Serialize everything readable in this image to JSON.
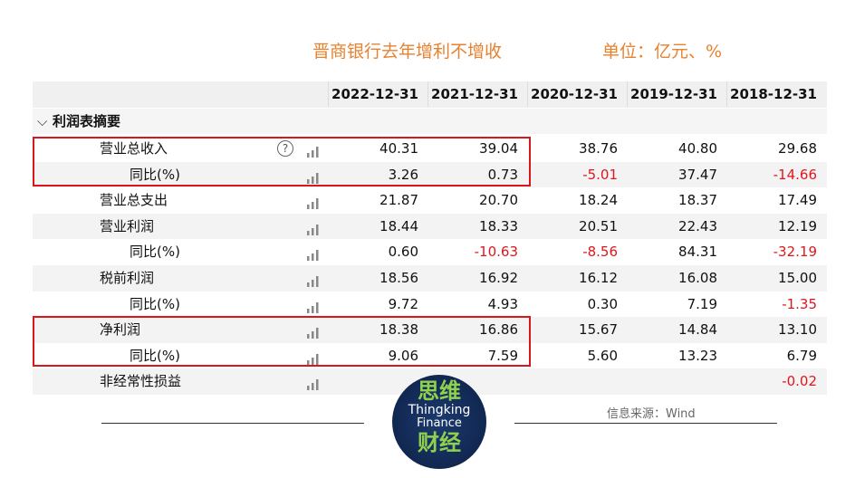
{
  "title": "晋商银行去年增利不增收",
  "unit": "单位：亿元、%",
  "table": {
    "columns": [
      "2022-12-31",
      "2021-12-31",
      "2020-12-31",
      "2019-12-31",
      "2018-12-31"
    ],
    "section": "利润表摘要",
    "rows": [
      {
        "label": "营业总收入",
        "values": [
          "40.31",
          "39.04",
          "38.76",
          "40.80",
          "29.68"
        ],
        "sub": {
          "label": "同比(%)",
          "values": [
            "3.26",
            "0.73",
            "-5.01",
            "37.47",
            "-14.66"
          ]
        }
      },
      {
        "label": "营业总支出",
        "values": [
          "21.87",
          "20.70",
          "18.24",
          "18.37",
          "17.49"
        ]
      },
      {
        "label": "营业利润",
        "values": [
          "18.44",
          "18.33",
          "20.51",
          "22.43",
          "12.19"
        ],
        "sub": {
          "label": "同比(%)",
          "values": [
            "0.60",
            "-10.63",
            "-8.56",
            "84.31",
            "-32.19"
          ]
        }
      },
      {
        "label": "税前利润",
        "values": [
          "18.56",
          "16.92",
          "16.12",
          "16.08",
          "15.00"
        ],
        "sub": {
          "label": "同比(%)",
          "values": [
            "9.72",
            "4.93",
            "0.30",
            "7.19",
            "-1.35"
          ]
        }
      },
      {
        "label": "净利润",
        "values": [
          "18.38",
          "16.86",
          "15.67",
          "14.84",
          "13.10"
        ],
        "sub": {
          "label": "同比(%)",
          "values": [
            "9.06",
            "7.59",
            "5.60",
            "13.23",
            "6.79"
          ]
        }
      },
      {
        "label": "非经常性损益",
        "values": [
          null,
          null,
          null,
          null,
          "-0.02"
        ]
      }
    ]
  },
  "source": "信息来源：Wind",
  "logo": {
    "top": "思维",
    "line1": "Thingking",
    "line2": "Finance",
    "bottom": "财经"
  }
}
